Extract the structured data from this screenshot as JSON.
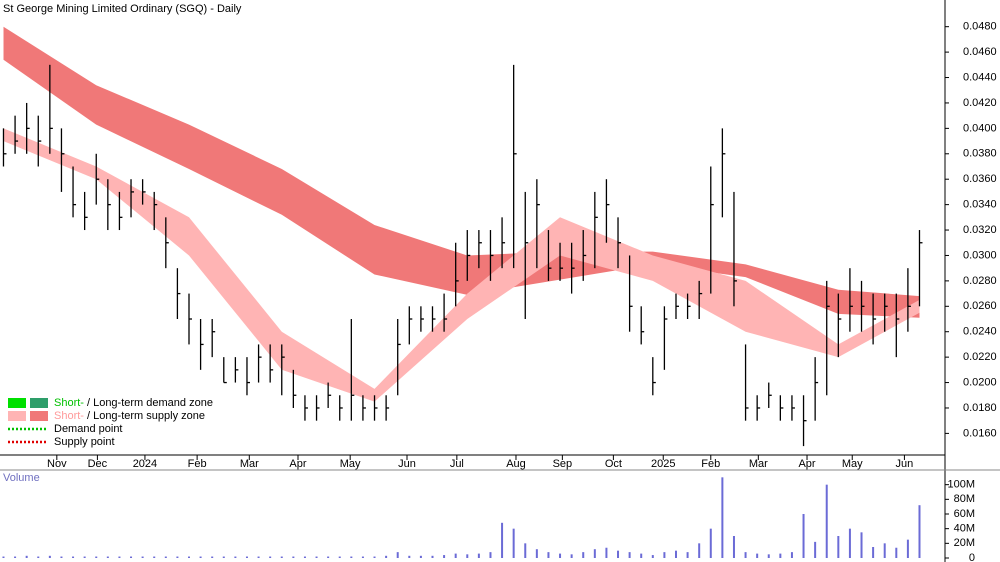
{
  "chart_data": {
    "type": "ohlc",
    "title": "St George Mining Limited Ordinary (SGQ) - Daily",
    "volume_label": "Volume",
    "ylim": [
      0.0143,
      0.0501
    ],
    "yticks": [
      {
        "value": 0.016,
        "label": "0.0160"
      },
      {
        "value": 0.018,
        "label": "0.0180"
      },
      {
        "value": 0.02,
        "label": "0.0200"
      },
      {
        "value": 0.022,
        "label": "0.0220"
      },
      {
        "value": 0.024,
        "label": "0.0240"
      },
      {
        "value": 0.026,
        "label": "0.0260"
      },
      {
        "value": 0.028,
        "label": "0.0280"
      },
      {
        "value": 0.03,
        "label": "0.0300"
      },
      {
        "value": 0.032,
        "label": "0.0320"
      },
      {
        "value": 0.034,
        "label": "0.0340"
      },
      {
        "value": 0.036,
        "label": "0.0360"
      },
      {
        "value": 0.038,
        "label": "0.0380"
      },
      {
        "value": 0.04,
        "label": "0.0400"
      },
      {
        "value": 0.042,
        "label": "0.0420"
      },
      {
        "value": 0.044,
        "label": "0.0440"
      },
      {
        "value": 0.046,
        "label": "0.0460"
      },
      {
        "value": 0.048,
        "label": "0.0480"
      }
    ],
    "xlim": [
      -0.3,
      81.2
    ],
    "xticks": [
      {
        "value": 4.6,
        "label": "Nov"
      },
      {
        "value": 8.1,
        "label": "Dec"
      },
      {
        "value": 12.2,
        "label": "2024"
      },
      {
        "value": 16.7,
        "label": "Feb"
      },
      {
        "value": 21.2,
        "label": "Mar"
      },
      {
        "value": 25.4,
        "label": "Apr"
      },
      {
        "value": 29.9,
        "label": "May"
      },
      {
        "value": 34.8,
        "label": "Jun"
      },
      {
        "value": 39.1,
        "label": "Jul"
      },
      {
        "value": 44.2,
        "label": "Aug"
      },
      {
        "value": 48.2,
        "label": "Sep"
      },
      {
        "value": 52.6,
        "label": "Oct"
      },
      {
        "value": 56.9,
        "label": "2025"
      },
      {
        "value": 61,
        "label": "Feb"
      },
      {
        "value": 65.1,
        "label": "Mar"
      },
      {
        "value": 69.3,
        "label": "Apr"
      },
      {
        "value": 73.2,
        "label": "May"
      },
      {
        "value": 77.7,
        "label": "Jun"
      }
    ],
    "price": {
      "color": "#000000",
      "high": [
        0.04,
        0.041,
        0.042,
        0.041,
        0.045,
        0.04,
        0.037,
        0.035,
        0.038,
        0.036,
        0.035,
        0.036,
        0.036,
        0.035,
        0.033,
        0.029,
        0.027,
        0.025,
        0.025,
        0.022,
        0.022,
        0.022,
        0.023,
        0.023,
        0.023,
        0.021,
        0.019,
        0.019,
        0.02,
        0.019,
        0.025,
        0.019,
        0.019,
        0.019,
        0.025,
        0.026,
        0.026,
        0.026,
        0.027,
        0.031,
        0.032,
        0.032,
        0.032,
        0.033,
        0.045,
        0.035,
        0.036,
        0.032,
        0.031,
        0.031,
        0.032,
        0.035,
        0.036,
        0.033,
        0.03,
        0.026,
        0.022,
        0.026,
        0.027,
        0.027,
        0.028,
        0.037,
        0.04,
        0.035,
        0.023,
        0.019,
        0.02,
        0.019,
        0.019,
        0.019,
        0.022,
        0.028,
        0.027,
        0.029,
        0.028,
        0.027,
        0.027,
        0.027,
        0.029,
        0.032
      ],
      "low": [
        0.037,
        0.038,
        0.038,
        0.037,
        0.038,
        0.035,
        0.033,
        0.032,
        0.034,
        0.032,
        0.032,
        0.033,
        0.034,
        0.032,
        0.029,
        0.025,
        0.023,
        0.021,
        0.022,
        0.02,
        0.02,
        0.019,
        0.02,
        0.02,
        0.019,
        0.018,
        0.017,
        0.017,
        0.018,
        0.017,
        0.017,
        0.017,
        0.017,
        0.017,
        0.019,
        0.023,
        0.024,
        0.024,
        0.024,
        0.026,
        0.028,
        0.029,
        0.028,
        0.029,
        0.029,
        0.025,
        0.029,
        0.028,
        0.028,
        0.027,
        0.028,
        0.029,
        0.031,
        0.029,
        0.024,
        0.023,
        0.019,
        0.021,
        0.025,
        0.025,
        0.025,
        0.027,
        0.033,
        0.026,
        0.017,
        0.017,
        0.018,
        0.017,
        0.017,
        0.015,
        0.017,
        0.019,
        0.022,
        0.024,
        0.024,
        0.023,
        0.024,
        0.022,
        0.024,
        0.026
      ],
      "close": [
        0.038,
        0.039,
        0.04,
        0.039,
        0.04,
        0.038,
        0.034,
        0.033,
        0.036,
        0.034,
        0.033,
        0.035,
        0.035,
        0.034,
        0.031,
        0.027,
        0.025,
        0.023,
        0.024,
        0.02,
        0.021,
        0.02,
        0.022,
        0.021,
        0.022,
        0.019,
        0.018,
        0.018,
        0.019,
        0.018,
        0.019,
        0.018,
        0.018,
        0.018,
        0.023,
        0.025,
        0.025,
        0.025,
        0.025,
        0.028,
        0.03,
        0.031,
        0.03,
        0.031,
        0.038,
        0.031,
        0.034,
        0.029,
        0.029,
        0.029,
        0.03,
        0.033,
        0.034,
        0.031,
        0.026,
        0.024,
        0.02,
        0.025,
        0.026,
        0.026,
        0.027,
        0.034,
        0.038,
        0.028,
        0.018,
        0.018,
        0.019,
        0.018,
        0.018,
        0.017,
        0.02,
        0.026,
        0.025,
        0.026,
        0.026,
        0.025,
        0.026,
        0.025,
        0.026,
        0.031
      ]
    },
    "zones": [
      {
        "name": "long-term",
        "color": "#f07878",
        "x": [
          0,
          8,
          16,
          24,
          32,
          40,
          48,
          56,
          64,
          72,
          79
        ],
        "upper": [
          0.048,
          0.0434,
          0.0403,
          0.0368,
          0.0324,
          0.03,
          0.0303,
          0.0303,
          0.0293,
          0.0273,
          0.0268
        ],
        "lower": [
          0.0454,
          0.0403,
          0.0368,
          0.0332,
          0.0285,
          0.0269,
          0.0281,
          0.0293,
          0.0283,
          0.0254,
          0.0251
        ]
      },
      {
        "name": "short-term",
        "color": "#ffb4b4",
        "x": [
          0,
          8,
          16,
          24,
          32,
          40,
          48,
          56,
          64,
          72,
          79
        ],
        "upper": [
          0.04,
          0.037,
          0.033,
          0.024,
          0.0195,
          0.027,
          0.033,
          0.03,
          0.028,
          0.023,
          0.0265
        ],
        "lower": [
          0.039,
          0.036,
          0.03,
          0.021,
          0.0185,
          0.025,
          0.03,
          0.028,
          0.024,
          0.022,
          0.0255
        ]
      }
    ],
    "volume": {
      "color": "#6b6bd6",
      "ylim": [
        0,
        120000000
      ],
      "yticks": [
        0,
        {
          "value": 20000000,
          "label": "20M"
        },
        {
          "value": 40000000,
          "label": "40M"
        },
        {
          "value": 60000000,
          "label": "60M"
        },
        {
          "value": 80000000,
          "label": "80M"
        },
        {
          "value": 100000000,
          "label": "100M"
        }
      ],
      "values": [
        2000000,
        2000000,
        3000000,
        2000000,
        3000000,
        2000000,
        2000000,
        2000000,
        2000000,
        2000000,
        2000000,
        2000000,
        2000000,
        2000000,
        2000000,
        2000000,
        2000000,
        2000000,
        2000000,
        2000000,
        2000000,
        2000000,
        2000000,
        2000000,
        2000000,
        2000000,
        2000000,
        2000000,
        2000000,
        2000000,
        2000000,
        2000000,
        2000000,
        3000000,
        8000000,
        3000000,
        3000000,
        3000000,
        4000000,
        6000000,
        5000000,
        6000000,
        8000000,
        48000000,
        40000000,
        20000000,
        12000000,
        8000000,
        6000000,
        5000000,
        8000000,
        12000000,
        14000000,
        10000000,
        8000000,
        6000000,
        4000000,
        8000000,
        10000000,
        8000000,
        20000000,
        40000000,
        110000000,
        30000000,
        8000000,
        6000000,
        5000000,
        6000000,
        8000000,
        60000000,
        22000000,
        100000000,
        30000000,
        40000000,
        35000000,
        15000000,
        20000000,
        14000000,
        25000000,
        72000000
      ]
    },
    "legend": [
      {
        "short": "Short-",
        "rest": "/ Long-term demand zone",
        "colors": [
          "#00e000",
          "#2e9e6a"
        ],
        "short_color": "#00c000"
      },
      {
        "short": "Short-",
        "rest": "/ Long-term supply zone",
        "colors": [
          "#ffb4b4",
          "#f07878"
        ],
        "short_color": "#ff9a9a"
      },
      {
        "text": "Demand point",
        "color": "#00c000"
      },
      {
        "text": "Supply point",
        "color": "#e00000"
      }
    ]
  }
}
